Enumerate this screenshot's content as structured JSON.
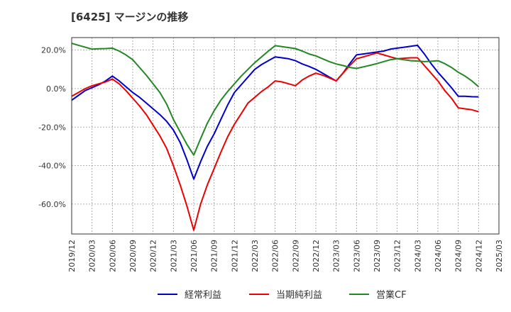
{
  "chart_data": {
    "type": "line",
    "title": "[6425]  マージンの推移",
    "xlabel": "",
    "ylabel": "",
    "ylim": [
      -75.5,
      26.5
    ],
    "grid": true,
    "legend_position": "bottom",
    "x_ticks": [
      "2019/12",
      "2020/03",
      "2020/06",
      "2020/09",
      "2020/12",
      "2021/03",
      "2021/06",
      "2021/09",
      "2021/12",
      "2022/03",
      "2022/06",
      "2022/09",
      "2022/12",
      "2023/03",
      "2023/06",
      "2023/09",
      "2023/12",
      "2024/03",
      "2024/06",
      "2024/09",
      "2024/12",
      "2025/03"
    ],
    "y_ticks": [
      20,
      0,
      -20,
      -40,
      -60
    ],
    "y_tick_labels": [
      "20.0%",
      "0.0%",
      "-20.0%",
      "-40.0%",
      "-60.0%"
    ],
    "x": [
      "2019/12",
      "2020/01",
      "2020/02",
      "2020/03",
      "2020/04",
      "2020/05",
      "2020/06",
      "2020/07",
      "2020/08",
      "2020/09",
      "2020/10",
      "2020/11",
      "2020/12",
      "2021/01",
      "2021/02",
      "2021/03",
      "2021/04",
      "2021/05",
      "2021/06",
      "2021/07",
      "2021/08",
      "2021/09",
      "2021/10",
      "2021/11",
      "2021/12",
      "2022/01",
      "2022/02",
      "2022/03",
      "2022/04",
      "2022/05",
      "2022/06",
      "2022/07",
      "2022/08",
      "2022/09",
      "2022/10",
      "2022/11",
      "2022/12",
      "2023/01",
      "2023/02",
      "2023/03",
      "2023/04",
      "2023/05",
      "2023/06",
      "2023/07",
      "2023/08",
      "2023/09",
      "2023/10",
      "2023/11",
      "2023/12",
      "2024/01",
      "2024/02",
      "2024/03",
      "2024/04",
      "2024/05",
      "2024/06",
      "2024/07",
      "2024/08",
      "2024/09",
      "2024/10",
      "2024/11",
      "2024/12"
    ],
    "series": [
      {
        "name": "経常利益",
        "color": "#0000cc",
        "values": [
          -6.0,
          -3.5,
          -1.0,
          0.5,
          2.0,
          4.0,
          6.5,
          4.0,
          1.0,
          -2.0,
          -4.5,
          -7.5,
          -10.5,
          -13.5,
          -17.0,
          -21.5,
          -28.0,
          -37.0,
          -47.0,
          -38.0,
          -30.0,
          -23.5,
          -16.0,
          -8.5,
          -2.0,
          2.0,
          6.0,
          10.0,
          12.5,
          14.5,
          16.5,
          16.0,
          15.5,
          14.5,
          12.8,
          11.5,
          10.0,
          8.0,
          6.0,
          4.0,
          8.0,
          13.0,
          17.5,
          18.0,
          18.5,
          19.0,
          19.5,
          20.5,
          21.0,
          21.5,
          22.0,
          22.5,
          18.0,
          13.0,
          8.5,
          4.5,
          0.5,
          -4.0,
          -4.0,
          -4.2,
          -4.3
        ]
      },
      {
        "name": "当期純利益",
        "color": "#ee0000",
        "values": [
          -4.0,
          -2.0,
          0.0,
          1.5,
          2.5,
          3.5,
          5.0,
          2.5,
          -1.0,
          -5.0,
          -9.0,
          -13.5,
          -19.0,
          -24.5,
          -31.0,
          -40.0,
          -50.0,
          -61.0,
          -73.5,
          -60.0,
          -50.0,
          -41.5,
          -33.0,
          -25.0,
          -18.5,
          -13.0,
          -7.5,
          -4.5,
          -1.5,
          1.0,
          4.0,
          3.5,
          2.5,
          1.5,
          4.5,
          6.5,
          8.0,
          7.0,
          5.5,
          4.0,
          8.0,
          12.0,
          15.5,
          16.5,
          17.5,
          18.5,
          17.5,
          16.5,
          15.5,
          15.8,
          16.0,
          16.0,
          12.0,
          8.0,
          4.0,
          -1.0,
          -5.0,
          -10.0,
          -10.5,
          -11.0,
          -12.0
        ]
      },
      {
        "name": "営業CF",
        "color": "#228822",
        "values": [
          23.5,
          22.5,
          21.5,
          20.5,
          20.7,
          20.8,
          21.0,
          19.5,
          17.5,
          15.0,
          11.0,
          7.0,
          2.5,
          -2.0,
          -8.0,
          -16.0,
          -22.5,
          -29.0,
          -34.5,
          -26.0,
          -18.0,
          -11.5,
          -6.0,
          -1.5,
          2.5,
          6.5,
          10.0,
          13.5,
          16.5,
          19.5,
          22.3,
          21.8,
          21.3,
          20.8,
          19.5,
          18.0,
          17.0,
          15.5,
          14.0,
          12.8,
          12.0,
          11.0,
          10.5,
          11.3,
          12.1,
          13.0,
          14.0,
          15.0,
          15.5,
          15.0,
          14.5,
          14.3,
          14.0,
          14.2,
          14.5,
          13.0,
          11.0,
          8.5,
          6.5,
          4.0,
          1.0
        ]
      }
    ]
  }
}
